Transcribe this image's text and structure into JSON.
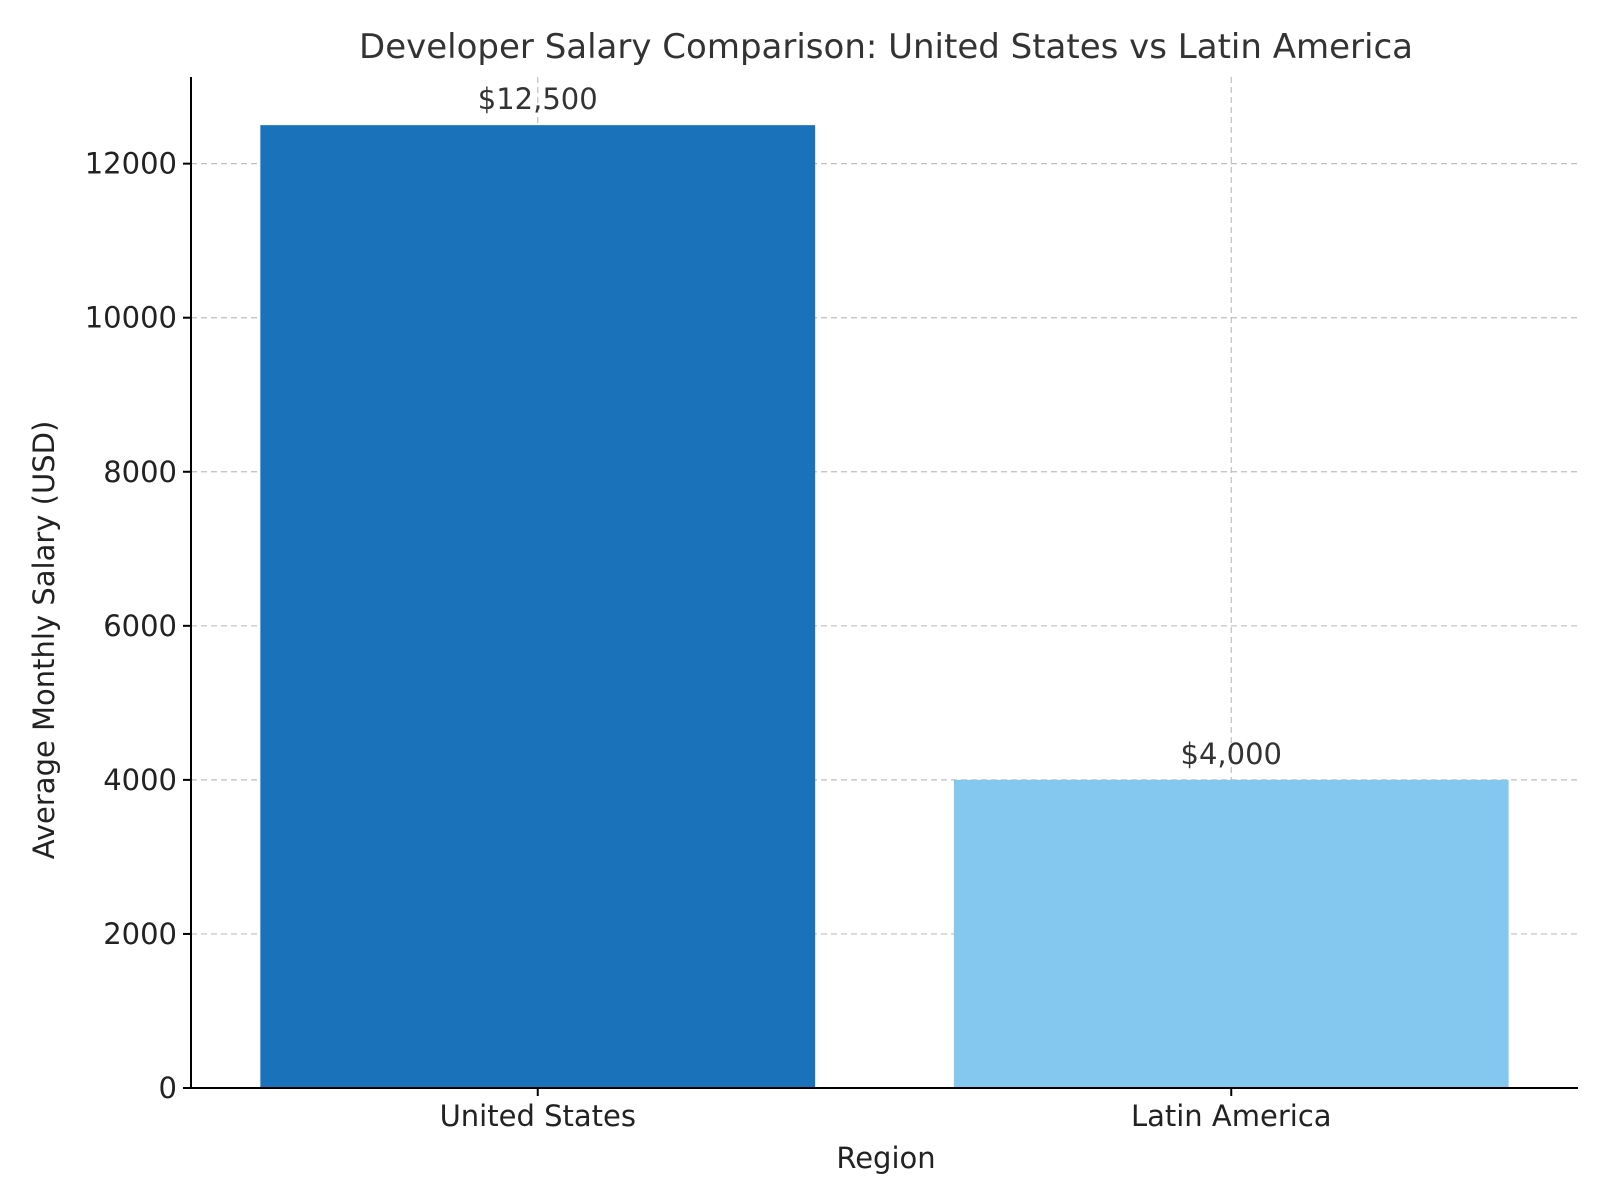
{
  "chart_data": {
    "type": "bar",
    "title": "Developer Salary Comparison: United States vs Latin America",
    "xlabel": "Region",
    "ylabel": "Average Monthly Salary (USD)",
    "categories": [
      "United States",
      "Latin America"
    ],
    "values": [
      12500,
      4000
    ],
    "data_labels": [
      "$12,500",
      "$4,000"
    ],
    "colors": [
      "#1a72bb",
      "#85c8ef"
    ],
    "ylim": [
      0,
      13125
    ],
    "yticks": [
      0,
      2000,
      4000,
      6000,
      8000,
      10000,
      12000
    ],
    "ytick_labels": [
      "0",
      "2000",
      "4000",
      "6000",
      "8000",
      "10000",
      "12000"
    ],
    "grid": true,
    "legend": "none"
  }
}
